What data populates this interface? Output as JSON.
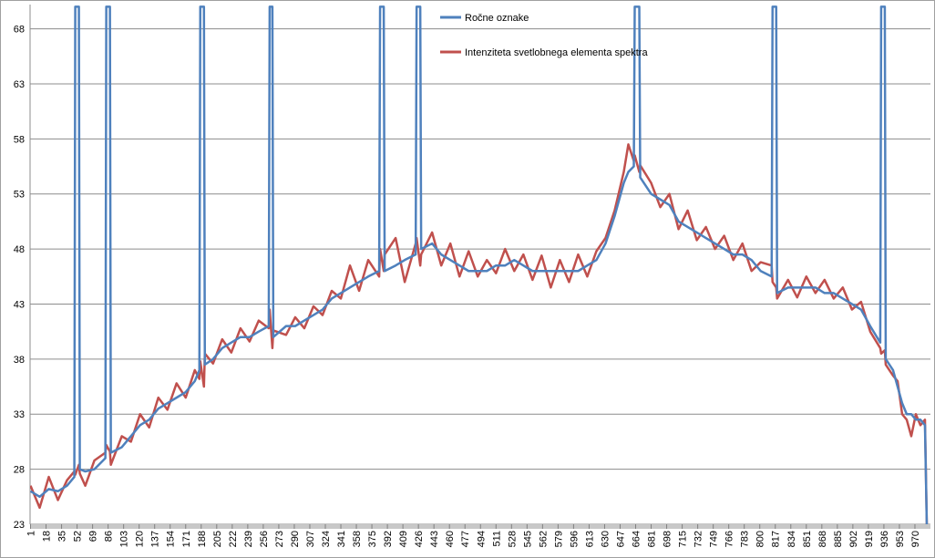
{
  "chart_data": {
    "type": "line",
    "x": [
      1,
      11,
      21,
      31,
      41,
      49,
      50,
      54,
      55,
      61,
      71,
      83,
      84,
      88,
      89,
      101,
      111,
      121,
      131,
      141,
      151,
      161,
      171,
      181,
      186,
      187,
      191,
      192,
      201,
      211,
      221,
      231,
      241,
      251,
      262,
      263,
      266,
      267,
      281,
      291,
      301,
      311,
      321,
      331,
      341,
      351,
      361,
      371,
      383,
      384,
      388,
      389,
      401,
      411,
      423,
      424,
      428,
      429,
      441,
      451,
      461,
      471,
      481,
      491,
      501,
      511,
      521,
      531,
      541,
      551,
      561,
      571,
      581,
      591,
      601,
      611,
      621,
      631,
      641,
      651,
      656,
      662,
      663,
      668,
      669,
      681,
      691,
      701,
      711,
      721,
      731,
      741,
      751,
      761,
      771,
      781,
      791,
      801,
      813,
      814,
      818,
      819,
      831,
      841,
      851,
      861,
      871,
      881,
      891,
      901,
      911,
      921,
      932,
      933,
      937,
      938,
      946,
      951,
      956,
      961,
      966,
      971,
      976,
      981,
      983
    ],
    "series": [
      {
        "name": "Ročne oznake",
        "color": "#4f81bd",
        "values": [
          26,
          25.5,
          26.2,
          26,
          26.5,
          27.3,
          70,
          70,
          28,
          27.8,
          28,
          29,
          70,
          70,
          29.5,
          30,
          31,
          32,
          32.5,
          33.5,
          34,
          34.5,
          35,
          36,
          37,
          70,
          70,
          37.5,
          38,
          39,
          39.5,
          40,
          40,
          40.5,
          41,
          70,
          70,
          40,
          41,
          41,
          41.5,
          42,
          42.5,
          43.5,
          44,
          44.5,
          45,
          45.5,
          46,
          70,
          70,
          46,
          46.5,
          47,
          47.5,
          70,
          70,
          48,
          48.5,
          47.5,
          47,
          46.5,
          46,
          46,
          46,
          46.5,
          46.5,
          47,
          46.5,
          46,
          46,
          46,
          46,
          46,
          46,
          46.5,
          47,
          48.5,
          51,
          54,
          55,
          55.5,
          70,
          70,
          54.5,
          53,
          52.5,
          52,
          50.5,
          50,
          49.5,
          49,
          48.5,
          48,
          47.5,
          47.5,
          47,
          46,
          45.5,
          70,
          70,
          44,
          44.5,
          44.5,
          44.5,
          44.5,
          44,
          44,
          43.5,
          43,
          42.5,
          41,
          39.5,
          70,
          70,
          38,
          37,
          35.5,
          34,
          33,
          33,
          32.5,
          32.5,
          32,
          23
        ]
      },
      {
        "name": "Intenziteta svetlobnega elementa spektra",
        "color": "#c0504d",
        "values": [
          26.5,
          24.5,
          27.3,
          25.2,
          27,
          27.8,
          27.5,
          28.4,
          27.6,
          26.5,
          28.8,
          29.5,
          30.2,
          29.6,
          28.4,
          31,
          30.5,
          33,
          31.8,
          34.5,
          33.4,
          35.8,
          34.5,
          37,
          36.2,
          37.8,
          35.5,
          38.5,
          37.6,
          39.8,
          38.6,
          40.8,
          39.6,
          41.5,
          40.8,
          42.5,
          39,
          40.6,
          40.2,
          41.8,
          40.8,
          42.8,
          42,
          44.2,
          43.5,
          46.5,
          44.2,
          47,
          45.5,
          48,
          46,
          47.5,
          49,
          45,
          48.5,
          49,
          46.5,
          47.5,
          49.5,
          46.5,
          48.5,
          45.5,
          47.8,
          45.5,
          47,
          45.8,
          48,
          46,
          47.5,
          45.2,
          47.4,
          44.5,
          47,
          45,
          47.5,
          45.5,
          47.8,
          49,
          51.5,
          55,
          57.5,
          56,
          56.5,
          55,
          55.6,
          54,
          51.8,
          53,
          49.8,
          51.5,
          48.8,
          50,
          48,
          49.2,
          47,
          48.5,
          46,
          46.8,
          46.5,
          45,
          44.5,
          43.5,
          45.2,
          43.6,
          45.5,
          44,
          45.2,
          43.5,
          44.5,
          42.5,
          43.2,
          40.5,
          39,
          38.5,
          38.8,
          37.5,
          36.5,
          36,
          33,
          32.5,
          31,
          33,
          32,
          32.5,
          23
        ]
      }
    ],
    "xlim": [
      0.5,
      987
    ],
    "xticks": [
      1,
      18,
      35,
      52,
      69,
      86,
      103,
      120,
      137,
      154,
      171,
      188,
      205,
      222,
      239,
      256,
      273,
      290,
      307,
      324,
      341,
      358,
      375,
      392,
      409,
      426,
      443,
      460,
      477,
      494,
      511,
      528,
      545,
      562,
      579,
      596,
      613,
      630,
      647,
      664,
      681,
      698,
      715,
      732,
      749,
      766,
      783,
      800,
      817,
      834,
      851,
      868,
      885,
      902,
      919,
      936,
      953,
      970
    ],
    "ylim": [
      23,
      70.2
    ],
    "yticks": [
      23,
      28,
      33,
      38,
      43,
      48,
      53,
      58,
      63,
      68
    ],
    "grid": true
  }
}
